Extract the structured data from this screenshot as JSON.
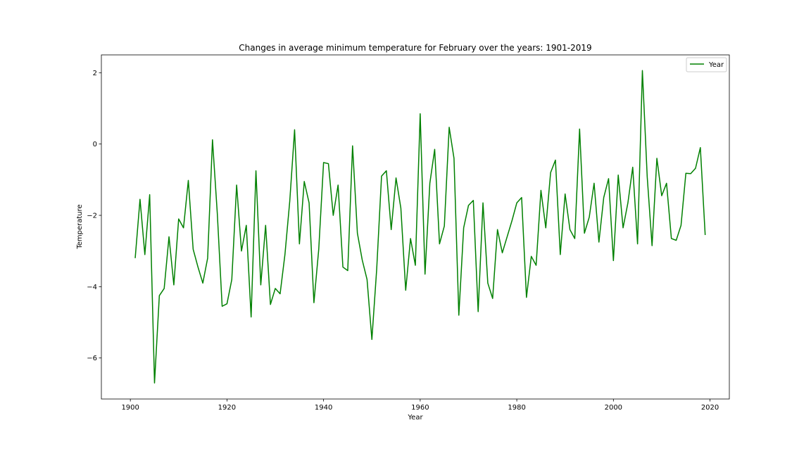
{
  "chart_data": {
    "type": "line",
    "title": "Changes in average minimum temperature for February over the years: 1901-2019",
    "xlabel": "Year",
    "ylabel": "Temperature",
    "xlim": [
      1894,
      2024
    ],
    "ylim": [
      -7.15,
      2.5
    ],
    "xticks": [
      1900,
      1920,
      1940,
      1960,
      1980,
      2000,
      2020
    ],
    "yticks": [
      -6,
      -4,
      -2,
      0,
      2
    ],
    "grid": false,
    "legend_position": "top-right",
    "series": [
      {
        "name": "Year",
        "color": "#008000",
        "x": [
          1901,
          1902,
          1903,
          1904,
          1905,
          1906,
          1907,
          1908,
          1909,
          1910,
          1911,
          1912,
          1913,
          1914,
          1915,
          1916,
          1917,
          1918,
          1919,
          1920,
          1921,
          1922,
          1923,
          1924,
          1925,
          1926,
          1927,
          1928,
          1929,
          1930,
          1931,
          1932,
          1933,
          1934,
          1935,
          1936,
          1937,
          1938,
          1939,
          1940,
          1941,
          1942,
          1943,
          1944,
          1945,
          1946,
          1947,
          1948,
          1949,
          1950,
          1951,
          1952,
          1953,
          1954,
          1955,
          1956,
          1957,
          1958,
          1959,
          1960,
          1961,
          1962,
          1963,
          1964,
          1965,
          1966,
          1967,
          1968,
          1969,
          1970,
          1971,
          1972,
          1973,
          1974,
          1975,
          1976,
          1977,
          1978,
          1979,
          1980,
          1981,
          1982,
          1983,
          1984,
          1985,
          1986,
          1987,
          1988,
          1989,
          1990,
          1991,
          1992,
          1993,
          1994,
          1995,
          1996,
          1997,
          1998,
          1999,
          2000,
          2001,
          2002,
          2003,
          2004,
          2005,
          2006,
          2007,
          2008,
          2009,
          2010,
          2011,
          2012,
          2013,
          2014,
          2015,
          2016,
          2017,
          2018,
          2019
        ],
        "y": [
          -3.2,
          -1.55,
          -3.1,
          -1.42,
          -6.7,
          -4.25,
          -4.05,
          -2.6,
          -3.95,
          -2.1,
          -2.35,
          -1.02,
          -2.95,
          -3.45,
          -3.9,
          -3.2,
          0.12,
          -1.95,
          -4.55,
          -4.48,
          -3.8,
          -1.15,
          -3.0,
          -2.28,
          -4.85,
          -0.75,
          -3.95,
          -2.28,
          -4.5,
          -4.05,
          -4.2,
          -3.1,
          -1.6,
          0.4,
          -2.8,
          -1.05,
          -1.65,
          -4.45,
          -2.95,
          -0.52,
          -0.55,
          -2.0,
          -1.15,
          -3.45,
          -3.55,
          -0.05,
          -2.5,
          -3.25,
          -3.8,
          -5.48,
          -3.5,
          -0.9,
          -0.75,
          -2.4,
          -0.95,
          -1.8,
          -4.1,
          -2.65,
          -3.4,
          0.85,
          -3.65,
          -1.1,
          -0.15,
          -2.8,
          -2.3,
          0.47,
          -0.4,
          -4.8,
          -2.35,
          -1.72,
          -1.58,
          -4.7,
          -1.65,
          -3.9,
          -4.33,
          -2.4,
          -3.05,
          -2.6,
          -2.15,
          -1.65,
          -1.5,
          -4.3,
          -3.15,
          -3.4,
          -1.3,
          -2.35,
          -0.8,
          -0.45,
          -3.1,
          -1.4,
          -2.4,
          -2.65,
          0.42,
          -2.5,
          -2.05,
          -1.1,
          -2.75,
          -1.5,
          -0.97,
          -3.27,
          -0.87,
          -2.35,
          -1.65,
          -0.65,
          -2.8,
          2.06,
          -0.92,
          -2.85,
          -0.4,
          -1.45,
          -1.1,
          -2.65,
          -2.7,
          -2.28,
          -0.82,
          -0.83,
          -0.68,
          -0.1,
          -2.55
        ]
      }
    ]
  }
}
